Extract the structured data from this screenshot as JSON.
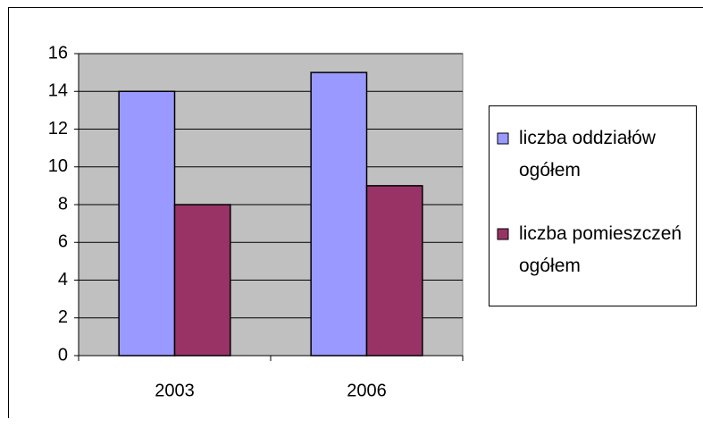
{
  "chart_data": {
    "type": "bar",
    "categories": [
      "2003",
      "2006"
    ],
    "series": [
      {
        "name": "liczba oddziałów ogółem",
        "color": "#9999ff",
        "values": [
          14,
          15
        ]
      },
      {
        "name": "liczba pomieszczeń ogółem",
        "color": "#993366",
        "values": [
          8,
          9
        ]
      }
    ],
    "ylim": [
      0,
      16
    ],
    "yticks": [
      0,
      2,
      4,
      6,
      8,
      10,
      12,
      14,
      16
    ],
    "grid": true,
    "legend": "right"
  }
}
